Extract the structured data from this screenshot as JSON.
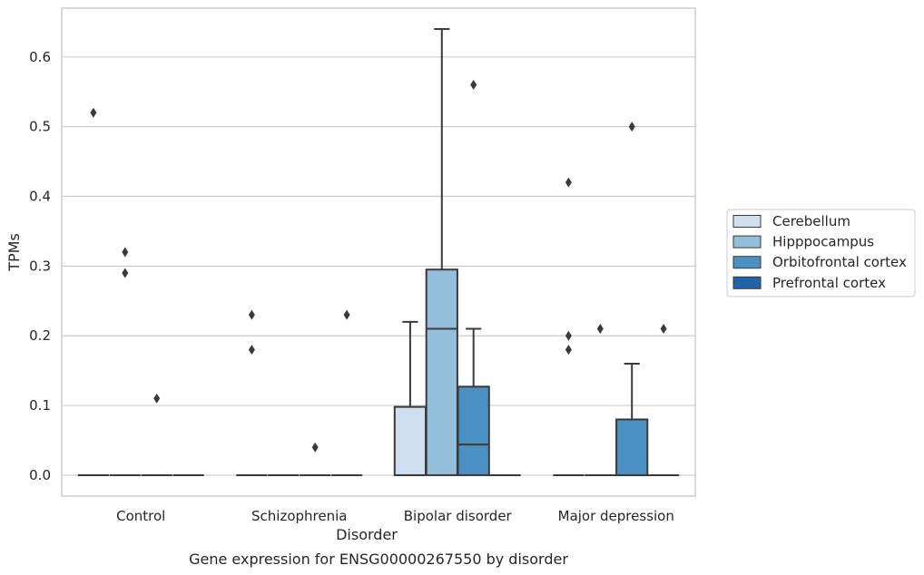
{
  "caption": "Gene expression for ENSG00000267550 by disorder",
  "chart_data": {
    "type": "box",
    "xlabel": "Disorder",
    "ylabel": "TPMs",
    "ylim": [
      -0.03,
      0.67
    ],
    "yticks": [
      0.0,
      0.1,
      0.2,
      0.3,
      0.4,
      0.5,
      0.6
    ],
    "ytick_labels": [
      "0.0",
      "0.1",
      "0.2",
      "0.3",
      "0.4",
      "0.5",
      "0.6"
    ],
    "grid": true,
    "legend_position": "right",
    "categories": [
      "Control",
      "Schizophrenia",
      "Bipolar disorder",
      "Major depression"
    ],
    "series": [
      {
        "name": "Cerebellum",
        "color": "#cfdff0",
        "boxes": [
          {
            "q1": 0.0,
            "median": 0.0,
            "q3": 0.0,
            "whislo": 0.0,
            "whishi": 0.0,
            "fliers": [
              0.52
            ]
          },
          {
            "q1": 0.0,
            "median": 0.0,
            "q3": 0.0,
            "whislo": 0.0,
            "whishi": 0.0,
            "fliers": [
              0.23,
              0.18
            ]
          },
          {
            "q1": 0.0,
            "median": 0.0,
            "q3": 0.098,
            "whislo": 0.0,
            "whishi": 0.22,
            "fliers": []
          },
          {
            "q1": 0.0,
            "median": 0.0,
            "q3": 0.0,
            "whislo": 0.0,
            "whishi": 0.0,
            "fliers": [
              0.42,
              0.2,
              0.18
            ]
          }
        ]
      },
      {
        "name": "Hipppocampus",
        "color": "#93bfdb",
        "boxes": [
          {
            "q1": 0.0,
            "median": 0.0,
            "q3": 0.0,
            "whislo": 0.0,
            "whishi": 0.0,
            "fliers": [
              0.32,
              0.29
            ]
          },
          {
            "q1": 0.0,
            "median": 0.0,
            "q3": 0.0,
            "whislo": 0.0,
            "whishi": 0.0,
            "fliers": []
          },
          {
            "q1": 0.0,
            "median": 0.21,
            "q3": 0.295,
            "whislo": 0.0,
            "whishi": 0.64,
            "fliers": []
          },
          {
            "q1": 0.0,
            "median": 0.0,
            "q3": 0.0,
            "whislo": 0.0,
            "whishi": 0.0,
            "fliers": [
              0.21
            ]
          }
        ]
      },
      {
        "name": "Orbitofrontal cortex",
        "color": "#4a90c2",
        "boxes": [
          {
            "q1": 0.0,
            "median": 0.0,
            "q3": 0.0,
            "whislo": 0.0,
            "whishi": 0.0,
            "fliers": [
              0.11
            ]
          },
          {
            "q1": 0.0,
            "median": 0.0,
            "q3": 0.0,
            "whislo": 0.0,
            "whishi": 0.0,
            "fliers": [
              0.04
            ]
          },
          {
            "q1": 0.0,
            "median": 0.044,
            "q3": 0.127,
            "whislo": 0.0,
            "whishi": 0.21,
            "fliers": [
              0.56
            ]
          },
          {
            "q1": 0.0,
            "median": 0.0,
            "q3": 0.08,
            "whislo": 0.0,
            "whishi": 0.16,
            "fliers": [
              0.5
            ]
          }
        ]
      },
      {
        "name": "Prefrontal cortex",
        "color": "#1f63a8",
        "boxes": [
          {
            "q1": 0.0,
            "median": 0.0,
            "q3": 0.0,
            "whislo": 0.0,
            "whishi": 0.0,
            "fliers": []
          },
          {
            "q1": 0.0,
            "median": 0.0,
            "q3": 0.0,
            "whislo": 0.0,
            "whishi": 0.0,
            "fliers": [
              0.23
            ]
          },
          {
            "q1": 0.0,
            "median": 0.0,
            "q3": 0.0,
            "whislo": 0.0,
            "whishi": 0.0,
            "fliers": []
          },
          {
            "q1": 0.0,
            "median": 0.0,
            "q3": 0.0,
            "whislo": 0.0,
            "whishi": 0.0,
            "fliers": [
              0.21
            ]
          }
        ]
      }
    ]
  }
}
